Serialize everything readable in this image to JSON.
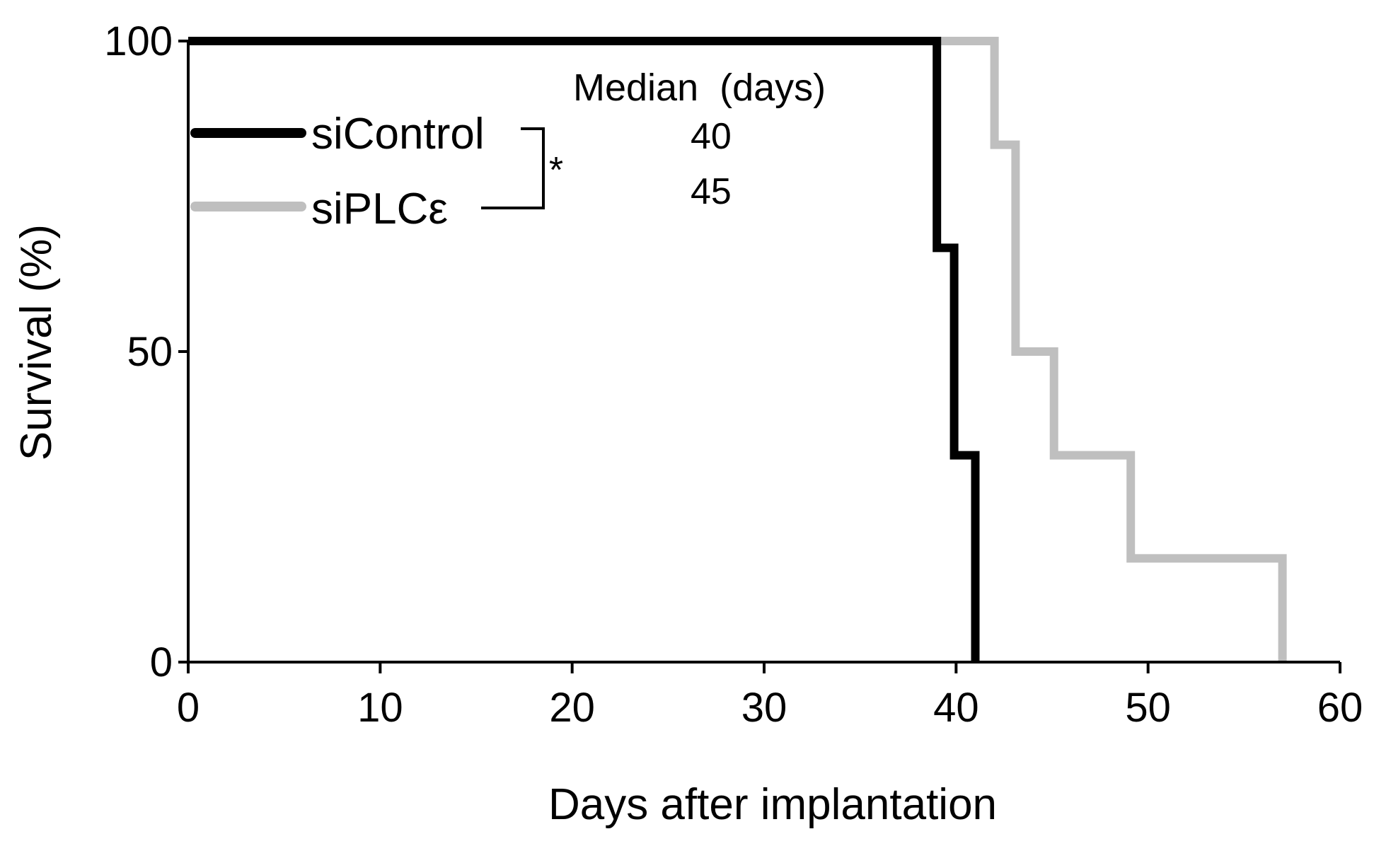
{
  "chart_data": {
    "type": "line",
    "step": true,
    "title": "",
    "xlabel": "Days after implantation",
    "ylabel": "Survival (%)",
    "xlim": [
      0,
      60
    ],
    "ylim": [
      0,
      100
    ],
    "x_ticks": [
      0,
      10,
      20,
      30,
      40,
      50,
      60
    ],
    "y_ticks": [
      0,
      50,
      100
    ],
    "x_tick_labels": [
      "0",
      "10",
      "20",
      "30",
      "40",
      "50",
      "60"
    ],
    "y_tick_labels": [
      "0",
      "50",
      "100"
    ],
    "series": [
      {
        "name": "siControl",
        "color": "#000000",
        "x": [
          0,
          39,
          39,
          39.9,
          39.9,
          41,
          41
        ],
        "y": [
          100,
          100,
          66.7,
          66.7,
          33.3,
          33.3,
          0
        ]
      },
      {
        "name": "siPLCε",
        "color": "#bfbfbf",
        "x": [
          0,
          42,
          42,
          43.1,
          43.1,
          45.1,
          45.1,
          49.1,
          49.1,
          57,
          57
        ],
        "y": [
          100,
          100,
          83.3,
          83.3,
          50,
          50,
          33.3,
          33.3,
          16.7,
          16.7,
          0
        ]
      }
    ],
    "legend": {
      "position": "top-left",
      "header": "Median  (days)",
      "entries": [
        {
          "label": "siControl",
          "median": "40"
        },
        {
          "label": "siPLCε",
          "median": "45"
        }
      ],
      "significance": "*"
    }
  }
}
